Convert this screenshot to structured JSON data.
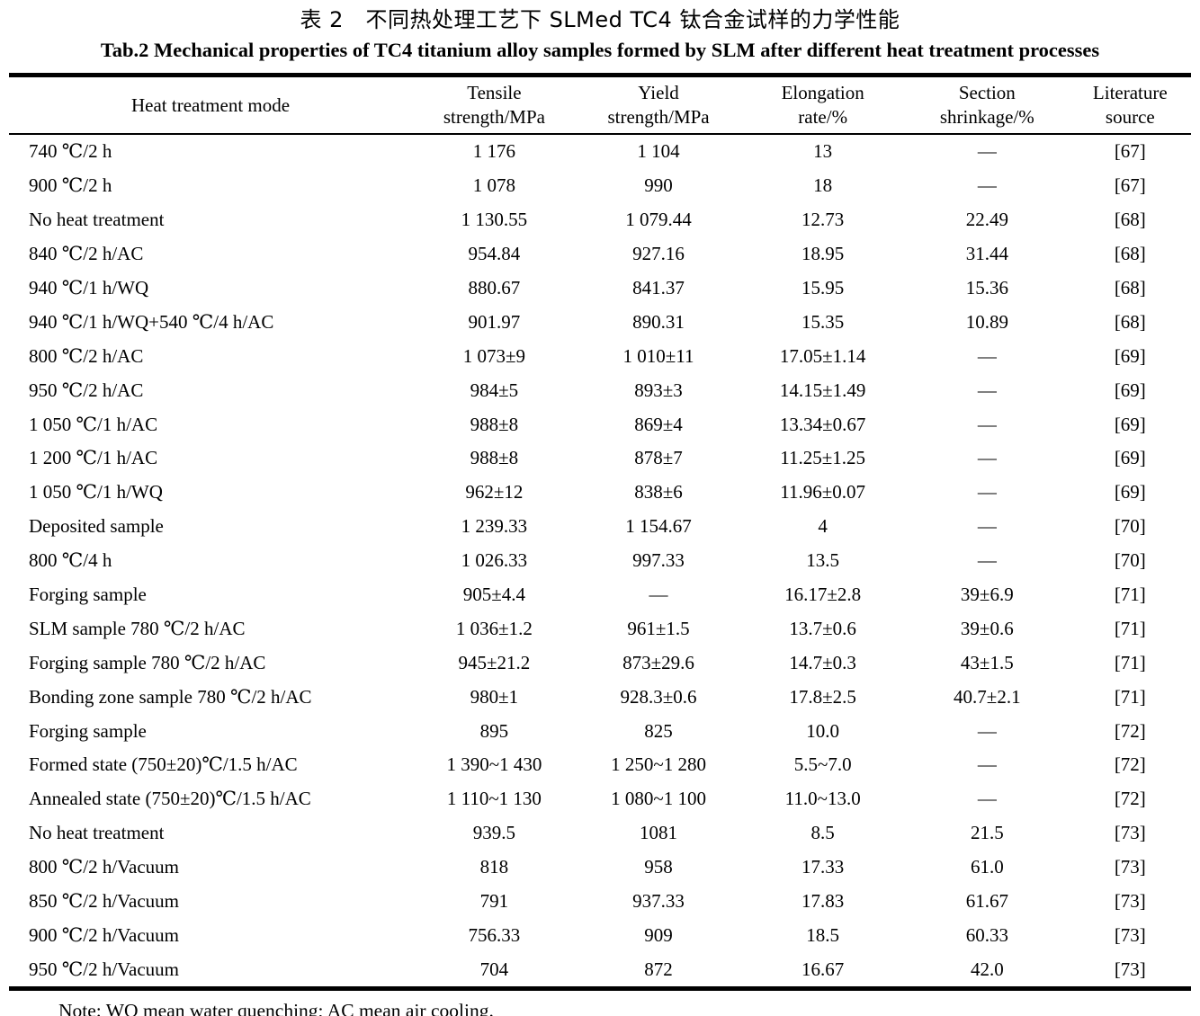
{
  "caption": {
    "zh": "表 2　不同热处理工艺下 SLMed TC4 钛合金试样的力学性能",
    "en": "Tab.2 Mechanical properties of TC4 titanium alloy samples formed by SLM after different heat treatment processes"
  },
  "table": {
    "headers": [
      [
        "Heat treatment mode"
      ],
      [
        "Tensile",
        "strength/MPa"
      ],
      [
        "Yield",
        "strength/MPa"
      ],
      [
        "Elongation",
        "rate/%"
      ],
      [
        "Section",
        "shrinkage/%"
      ],
      [
        "Literature",
        "source"
      ]
    ],
    "rows": [
      [
        "740 ℃/2 h",
        "1 176",
        "1 104",
        "13",
        "—",
        "[67]"
      ],
      [
        "900 ℃/2 h",
        "1 078",
        "990",
        "18",
        "—",
        "[67]"
      ],
      [
        "No heat treatment",
        "1 130.55",
        "1 079.44",
        "12.73",
        "22.49",
        "[68]"
      ],
      [
        "840 ℃/2 h/AC",
        "954.84",
        "927.16",
        "18.95",
        "31.44",
        "[68]"
      ],
      [
        "940 ℃/1 h/WQ",
        "880.67",
        "841.37",
        "15.95",
        "15.36",
        "[68]"
      ],
      [
        "940 ℃/1 h/WQ+540 ℃/4 h/AC",
        "901.97",
        "890.31",
        "15.35",
        "10.89",
        "[68]"
      ],
      [
        "800 ℃/2 h/AC",
        "1 073±9",
        "1 010±11",
        "17.05±1.14",
        "—",
        "[69]"
      ],
      [
        "950 ℃/2 h/AC",
        "984±5",
        "893±3",
        "14.15±1.49",
        "—",
        "[69]"
      ],
      [
        "1 050 ℃/1 h/AC",
        "988±8",
        "869±4",
        "13.34±0.67",
        "—",
        "[69]"
      ],
      [
        "1 200 ℃/1 h/AC",
        "988±8",
        "878±7",
        "11.25±1.25",
        "—",
        "[69]"
      ],
      [
        "1 050 ℃/1 h/WQ",
        "962±12",
        "838±6",
        "11.96±0.07",
        "—",
        "[69]"
      ],
      [
        "Deposited sample",
        "1 239.33",
        "1 154.67",
        "4",
        "—",
        "[70]"
      ],
      [
        "800 ℃/4 h",
        "1 026.33",
        "997.33",
        "13.5",
        "—",
        "[70]"
      ],
      [
        "Forging sample",
        "905±4.4",
        "—",
        "16.17±2.8",
        "39±6.9",
        "[71]"
      ],
      [
        "SLM sample 780 ℃/2 h/AC",
        "1 036±1.2",
        "961±1.5",
        "13.7±0.6",
        "39±0.6",
        "[71]"
      ],
      [
        "Forging sample 780 ℃/2 h/AC",
        "945±21.2",
        "873±29.6",
        "14.7±0.3",
        "43±1.5",
        "[71]"
      ],
      [
        "Bonding zone sample 780 ℃/2 h/AC",
        "980±1",
        "928.3±0.6",
        "17.8±2.5",
        "40.7±2.1",
        "[71]"
      ],
      [
        "Forging sample",
        "895",
        "825",
        "10.0",
        "—",
        "[72]"
      ],
      [
        "Formed state (750±20)℃/1.5 h/AC",
        "1 390~1 430",
        "1 250~1 280",
        "5.5~7.0",
        "—",
        "[72]"
      ],
      [
        "Annealed state (750±20)℃/1.5 h/AC",
        "1 110~1 130",
        "1 080~1 100",
        "11.0~13.0",
        "—",
        "[72]"
      ],
      [
        "No heat treatment",
        "939.5",
        "1081",
        "8.5",
        "21.5",
        "[73]"
      ],
      [
        "800 ℃/2 h/Vacuum",
        "818",
        "958",
        "17.33",
        "61.0",
        "[73]"
      ],
      [
        "850 ℃/2 h/Vacuum",
        "791",
        "937.33",
        "17.83",
        "61.67",
        "[73]"
      ],
      [
        "900 ℃/2 h/Vacuum",
        "756.33",
        "909",
        "18.5",
        "60.33",
        "[73]"
      ],
      [
        "950 ℃/2 h/Vacuum",
        "704",
        "872",
        "16.67",
        "42.0",
        "[73]"
      ]
    ]
  },
  "note": "Note: WQ mean water quenching; AC mean air cooling."
}
